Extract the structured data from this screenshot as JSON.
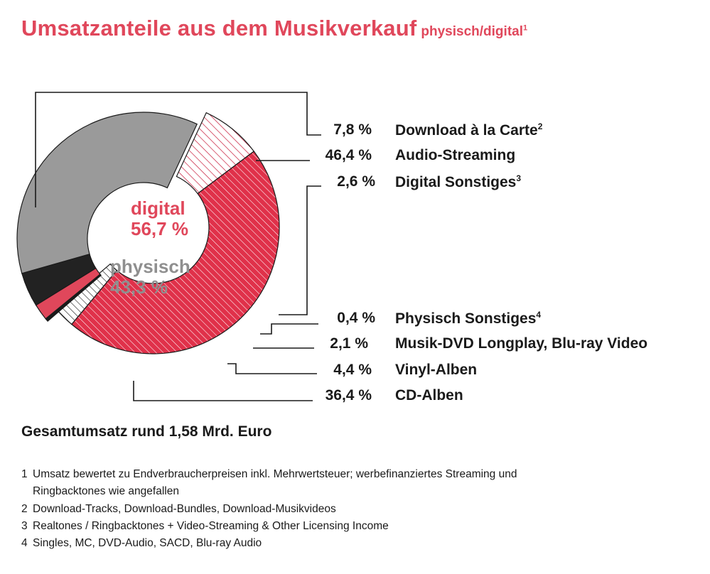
{
  "title": {
    "main": "Umsatzanteile aus dem Musikverkauf",
    "sub": "physisch/digital",
    "sub_sup": "1"
  },
  "center": {
    "digital_label": "digital",
    "digital_value": "56,7 %",
    "physisch_label": "physisch",
    "physisch_value": "43,3 %"
  },
  "legend": [
    {
      "pct": "7,8 %",
      "label": "Download à la Carte",
      "sup": "2"
    },
    {
      "pct": "46,4 %",
      "label": "Audio-Streaming",
      "sup": ""
    },
    {
      "pct": "2,6 %",
      "label": "Digital Sonstiges",
      "sup": "3"
    },
    {
      "pct": "0,4 %",
      "label": "Physisch Sonstiges",
      "sup": "4"
    },
    {
      "pct": "2,1 %",
      "label": "Musik-DVD Longplay, Blu-ray Video",
      "sup": ""
    },
    {
      "pct": "4,4 %",
      "label": "Vinyl-Alben",
      "sup": ""
    },
    {
      "pct": "36,4 %",
      "label": "CD-Alben",
      "sup": ""
    }
  ],
  "total": "Gesamtumsatz rund 1,58 Mrd. Euro",
  "footnotes": [
    {
      "num": "1",
      "text": "Umsatz bewertet zu Endverbraucherpreisen inkl. Mehrwertsteuer;    werbefinanziertes Streaming und",
      "cont": "Ringbacktones wie angefallen"
    },
    {
      "num": "2",
      "text": "Download-Tracks, Download-Bundles, Download-Musikvideos",
      "cont": ""
    },
    {
      "num": "3",
      "text": "Realtones / Ringbacktones + Video-Streaming & Other Licensing Income",
      "cont": ""
    },
    {
      "num": "4",
      "text": "Singles, MC, DVD-Audio, SACD, Blu-ray Audio",
      "cont": ""
    }
  ],
  "chart_data": {
    "type": "pie",
    "variant": "donut",
    "groups": [
      {
        "name": "digital",
        "total": 56.7
      },
      {
        "name": "physisch",
        "total": 43.3
      }
    ],
    "slices": [
      {
        "label": "Download à la Carte",
        "value": 7.8,
        "group": "digital",
        "fill": "#ffffff",
        "hatch": "#c81b3a"
      },
      {
        "label": "Audio-Streaming",
        "value": 46.4,
        "group": "digital",
        "fill": "#e0314a",
        "hatch": "#ffffff"
      },
      {
        "label": "Digital Sonstiges",
        "value": 2.6,
        "group": "digital",
        "fill": "#ffffff",
        "hatch": "#1a1a1a"
      },
      {
        "label": "Physisch Sonstiges",
        "value": 0.4,
        "group": "physisch",
        "fill": "#1a1a1a",
        "hatch": ""
      },
      {
        "label": "Musik-DVD Longplay, Blu-ray Video",
        "value": 2.1,
        "group": "physisch",
        "fill": "#e0475b",
        "hatch": ""
      },
      {
        "label": "Vinyl-Alben",
        "value": 4.4,
        "group": "physisch",
        "fill": "#222222",
        "hatch": ""
      },
      {
        "label": "CD-Alben",
        "value": 36.4,
        "group": "physisch",
        "fill": "#9a9a9a",
        "hatch": ""
      }
    ],
    "colors": {
      "accent": "#e0475b",
      "physisch": "#8f8f8f",
      "ink": "#1a1a1a"
    }
  }
}
